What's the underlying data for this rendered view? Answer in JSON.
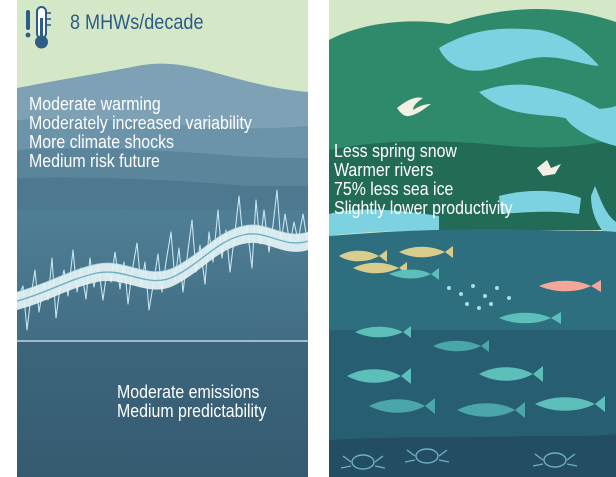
{
  "left_panel": {
    "header": {
      "text": "8 MHWs/decade",
      "icon": "thermometer-warning-icon"
    },
    "traits": [
      "Moderate warming",
      "Moderately increased variability",
      "More climate shocks",
      "Medium risk future"
    ],
    "footer": [
      "Moderate emissions",
      "Medium predictability"
    ]
  },
  "right_panel": {
    "traits": [
      "Less spring snow",
      "Warmer rivers",
      "75% less sea ice",
      "Slightly lower productivity"
    ]
  },
  "colors": {
    "sky": "#d4e7c6",
    "header_text": "#2d5c86",
    "deep_navy": "#2b4a63",
    "teal_water": "#3e7f8c",
    "ice_cyan": "#7cd2e0",
    "land_green": "#2e8a6a",
    "fish_tan": "#d8cd8c",
    "fish_teal": "#5cbfba"
  }
}
